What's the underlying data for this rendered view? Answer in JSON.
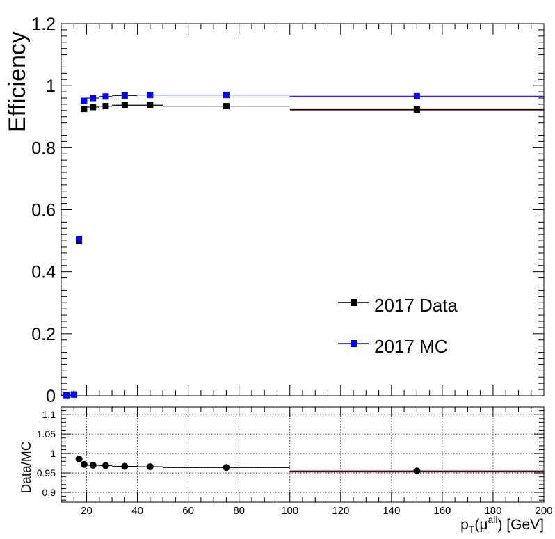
{
  "chart_data": [
    {
      "type": "line",
      "ylabel": "Efficiency",
      "xlim": [
        10,
        200
      ],
      "ylim": [
        0,
        1.2
      ],
      "yticks": [
        "0",
        "0.2",
        "0.4",
        "0.6",
        "0.8",
        "1",
        "1.2"
      ],
      "bin_edges": [
        10,
        14,
        16,
        18,
        20,
        25,
        30,
        40,
        50,
        100,
        200
      ],
      "series": [
        {
          "name": "2017 Data",
          "color": "#000000",
          "marker": "square",
          "x": [
            12,
            15,
            17,
            19,
            22.5,
            27.5,
            35,
            45,
            75,
            150
          ],
          "y": [
            0.002,
            0.004,
            0.499,
            0.925,
            0.931,
            0.934,
            0.937,
            0.937,
            0.934,
            0.923
          ]
        },
        {
          "name": "2017 MC",
          "color": "#0000ff",
          "marker": "square",
          "x": [
            12,
            15,
            17,
            19,
            22.5,
            27.5,
            35,
            45,
            75,
            150
          ],
          "y": [
            0.002,
            0.004,
            0.506,
            0.951,
            0.96,
            0.965,
            0.968,
            0.97,
            0.97,
            0.966
          ]
        }
      ],
      "legend": {
        "placement": "middle-right"
      }
    },
    {
      "type": "scatter",
      "ylabel": "Data/MC",
      "xlabel": "p_T(μ^all) [GeV]",
      "xlim": [
        10,
        200
      ],
      "ylim": [
        0.875,
        1.12
      ],
      "xticks": [
        "20",
        "40",
        "60",
        "80",
        "100",
        "120",
        "140",
        "160",
        "180",
        "200"
      ],
      "yticks": [
        "0.9",
        "0.95",
        "1",
        "1.05",
        "1.1"
      ],
      "grid": true,
      "bin_edges": [
        16,
        18,
        20,
        25,
        30,
        40,
        50,
        100,
        200
      ],
      "series": [
        {
          "name": "",
          "color": "#000000",
          "err_color": "#cc2222",
          "marker": "circle",
          "x": [
            17,
            19,
            22.5,
            27.5,
            35,
            45,
            75,
            150
          ],
          "y": [
            0.986,
            0.972,
            0.97,
            0.969,
            0.967,
            0.966,
            0.964,
            0.955
          ]
        }
      ]
    }
  ],
  "xlabel_parts": {
    "p": "p",
    "sub": "T",
    "open": "(μ",
    "sup": "all",
    "close": ") [GeV]"
  }
}
